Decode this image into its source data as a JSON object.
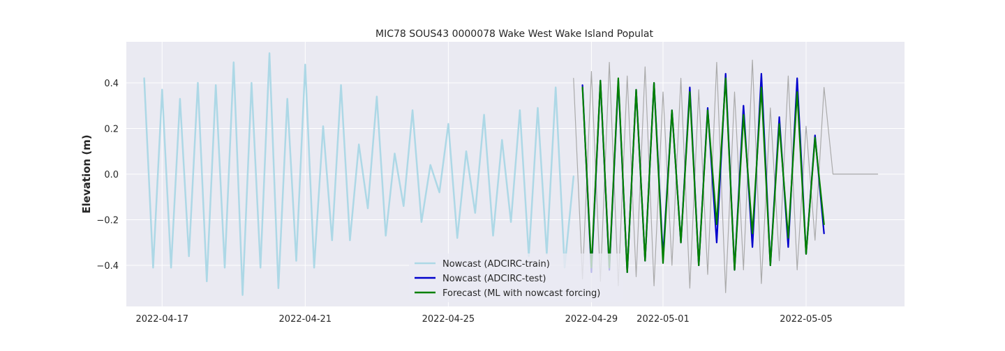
{
  "chart_data": {
    "type": "line",
    "title": "MIC78 SOUS43 0000078 Wake West Wake Island Populat",
    "xlabel": "",
    "ylabel": "Elevation (m)",
    "x_axis_type": "date",
    "xlim": [
      "2022-04-16T00:00",
      "2022-05-07T18:00"
    ],
    "ylim": [
      -0.58,
      0.58
    ],
    "x_ticks": [
      "2022-04-17",
      "2022-04-21",
      "2022-04-25",
      "2022-04-29",
      "2022-05-01",
      "2022-05-05"
    ],
    "y_ticks": [
      -0.4,
      -0.2,
      0.0,
      0.2,
      0.4
    ],
    "y_tick_labels": [
      "−0.4",
      "−0.2",
      "0.0",
      "0.2",
      "0.4"
    ],
    "grid": true,
    "background": "#EAEAF2",
    "legend_position": "bottom-center",
    "series": [
      {
        "name": "",
        "role": "observed",
        "color": "#AAAAAA",
        "x": [
          "2022-04-28T12:00",
          "2022-04-28T18:00",
          "2022-04-29T00:00",
          "2022-04-29T06:00",
          "2022-04-29T12:00",
          "2022-04-29T18:00",
          "2022-04-30T00:00",
          "2022-04-30T06:00",
          "2022-04-30T12:00",
          "2022-04-30T18:00",
          "2022-05-01T00:00",
          "2022-05-01T06:00",
          "2022-05-01T12:00",
          "2022-05-01T18:00",
          "2022-05-02T00:00",
          "2022-05-02T06:00",
          "2022-05-02T12:00",
          "2022-05-02T18:00",
          "2022-05-03T00:00",
          "2022-05-03T06:00",
          "2022-05-03T12:00",
          "2022-05-03T18:00",
          "2022-05-04T00:00",
          "2022-05-04T06:00",
          "2022-05-04T12:00",
          "2022-05-04T18:00",
          "2022-05-05T00:00",
          "2022-05-05T06:00",
          "2022-05-05T12:00",
          "2022-05-05T18:00",
          "2022-05-06T00:00",
          "2022-05-06T06:00",
          "2022-05-06T12:00",
          "2022-05-06T18:00",
          "2022-05-07T00:00"
        ],
        "y": [
          0.42,
          -0.46,
          0.45,
          -0.47,
          0.49,
          -0.49,
          0.43,
          -0.45,
          0.47,
          -0.49,
          0.36,
          -0.4,
          0.42,
          -0.5,
          0.37,
          -0.44,
          0.49,
          -0.52,
          0.36,
          -0.42,
          0.5,
          -0.48,
          0.29,
          -0.38,
          0.43,
          -0.42,
          0.21,
          -0.29,
          0.38,
          0.0,
          0.0,
          0.0,
          0.0,
          0.0,
          0.0
        ]
      },
      {
        "name": "Nowcast (ADCIRC-train)",
        "color": "#ADD8E6",
        "x": [
          "2022-04-16T12:00",
          "2022-04-16T18:00",
          "2022-04-17T00:00",
          "2022-04-17T06:00",
          "2022-04-17T12:00",
          "2022-04-17T18:00",
          "2022-04-18T00:00",
          "2022-04-18T06:00",
          "2022-04-18T12:00",
          "2022-04-18T18:00",
          "2022-04-19T00:00",
          "2022-04-19T06:00",
          "2022-04-19T12:00",
          "2022-04-19T18:00",
          "2022-04-20T00:00",
          "2022-04-20T06:00",
          "2022-04-20T12:00",
          "2022-04-20T18:00",
          "2022-04-21T00:00",
          "2022-04-21T06:00",
          "2022-04-21T12:00",
          "2022-04-21T18:00",
          "2022-04-22T00:00",
          "2022-04-22T06:00",
          "2022-04-22T12:00",
          "2022-04-22T18:00",
          "2022-04-23T00:00",
          "2022-04-23T06:00",
          "2022-04-23T12:00",
          "2022-04-23T18:00",
          "2022-04-24T00:00",
          "2022-04-24T06:00",
          "2022-04-24T12:00",
          "2022-04-24T18:00",
          "2022-04-25T00:00",
          "2022-04-25T06:00",
          "2022-04-25T12:00",
          "2022-04-25T18:00",
          "2022-04-26T00:00",
          "2022-04-26T06:00",
          "2022-04-26T12:00",
          "2022-04-26T18:00",
          "2022-04-27T00:00",
          "2022-04-27T06:00",
          "2022-04-27T12:00",
          "2022-04-27T18:00",
          "2022-04-28T00:00",
          "2022-04-28T06:00",
          "2022-04-28T12:00"
        ],
        "y": [
          0.42,
          -0.41,
          0.37,
          -0.41,
          0.33,
          -0.36,
          0.4,
          -0.47,
          0.39,
          -0.41,
          0.49,
          -0.53,
          0.4,
          -0.41,
          0.53,
          -0.5,
          0.33,
          -0.38,
          0.48,
          -0.41,
          0.21,
          -0.29,
          0.39,
          -0.29,
          0.13,
          -0.15,
          0.34,
          -0.27,
          0.09,
          -0.14,
          0.28,
          -0.21,
          0.04,
          -0.08,
          0.22,
          -0.28,
          0.1,
          -0.17,
          0.26,
          -0.27,
          0.15,
          -0.21,
          0.28,
          -0.36,
          0.29,
          -0.35,
          0.38,
          -0.41,
          -0.01
        ]
      },
      {
        "name": "Nowcast (ADCIRC-test)",
        "color": "#0000CC",
        "x": [
          "2022-04-28T18:00",
          "2022-04-29T00:00",
          "2022-04-29T06:00",
          "2022-04-29T12:00",
          "2022-04-29T18:00",
          "2022-04-30T00:00",
          "2022-04-30T06:00",
          "2022-04-30T12:00",
          "2022-04-30T18:00",
          "2022-05-01T00:00",
          "2022-05-01T06:00",
          "2022-05-01T12:00",
          "2022-05-01T18:00",
          "2022-05-02T00:00",
          "2022-05-02T06:00",
          "2022-05-02T12:00",
          "2022-05-02T18:00",
          "2022-05-03T00:00",
          "2022-05-03T06:00",
          "2022-05-03T12:00",
          "2022-05-03T18:00",
          "2022-05-04T00:00",
          "2022-05-04T06:00",
          "2022-05-04T12:00",
          "2022-05-04T18:00",
          "2022-05-05T00:00",
          "2022-05-05T06:00",
          "2022-05-05T12:00"
        ],
        "y": [
          0.39,
          -0.43,
          0.41,
          -0.42,
          0.41,
          -0.43,
          0.37,
          -0.38,
          0.4,
          -0.36,
          0.28,
          -0.3,
          0.38,
          -0.4,
          0.29,
          -0.3,
          0.44,
          -0.42,
          0.3,
          -0.32,
          0.44,
          -0.4,
          0.25,
          -0.32,
          0.42,
          -0.35,
          0.17,
          -0.26
        ]
      },
      {
        "name": "Forecast (ML with nowcast forcing)",
        "color": "#008000",
        "x": [
          "2022-04-28T18:00",
          "2022-04-29T00:00",
          "2022-04-29T06:00",
          "2022-04-29T12:00",
          "2022-04-29T18:00",
          "2022-04-30T00:00",
          "2022-04-30T06:00",
          "2022-04-30T12:00",
          "2022-04-30T18:00",
          "2022-05-01T00:00",
          "2022-05-01T06:00",
          "2022-05-01T12:00",
          "2022-05-01T18:00",
          "2022-05-02T00:00",
          "2022-05-02T06:00",
          "2022-05-02T12:00",
          "2022-05-02T18:00",
          "2022-05-03T00:00",
          "2022-05-03T06:00",
          "2022-05-03T12:00",
          "2022-05-03T18:00",
          "2022-05-04T00:00",
          "2022-05-04T06:00",
          "2022-05-04T12:00",
          "2022-05-04T18:00",
          "2022-05-05T00:00",
          "2022-05-05T06:00",
          "2022-05-05T12:00"
        ],
        "y": [
          0.38,
          -0.41,
          0.41,
          -0.41,
          0.42,
          -0.43,
          0.37,
          -0.38,
          0.4,
          -0.39,
          0.28,
          -0.3,
          0.36,
          -0.4,
          0.28,
          -0.22,
          0.42,
          -0.42,
          0.26,
          -0.26,
          0.38,
          -0.4,
          0.22,
          -0.28,
          0.36,
          -0.35,
          0.16,
          -0.22
        ]
      }
    ]
  }
}
